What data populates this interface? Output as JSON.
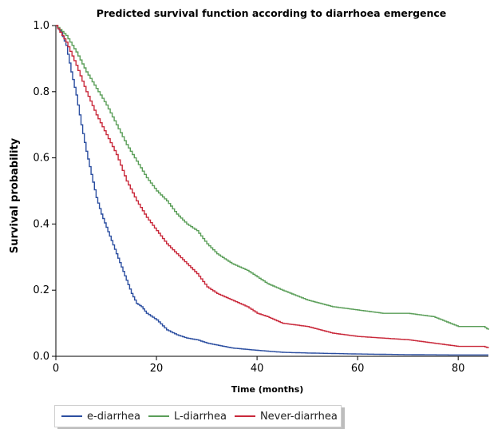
{
  "chart_data": {
    "type": "line",
    "title": "Predicted survival function according to diarrhoea emergence",
    "xlabel": "Time (months)",
    "ylabel": "Survival probability",
    "xlim": [
      0,
      86
    ],
    "ylim": [
      0,
      1.0
    ],
    "xticks": [
      0,
      20,
      40,
      60,
      80
    ],
    "xtick_labels": [
      "0",
      "20",
      "40",
      "60",
      "80"
    ],
    "yticks": [
      0,
      0.2,
      0.4,
      0.6,
      0.8,
      1.0
    ],
    "ytick_labels": [
      "0.0",
      "0.2",
      "0.4",
      "0.6",
      "0.8",
      "1.0"
    ],
    "grid": false,
    "legend_position": "bottom",
    "series": [
      {
        "name": "e-diarrhea",
        "color": "#2b4ea0",
        "x": [
          0,
          1,
          2,
          3,
          4,
          5,
          6,
          7,
          8,
          9,
          10,
          11,
          12,
          13,
          14,
          15,
          16,
          17,
          18,
          20,
          22,
          24,
          26,
          28,
          30,
          35,
          40,
          45,
          50,
          60,
          70,
          80,
          86
        ],
        "y": [
          1.0,
          0.98,
          0.94,
          0.86,
          0.79,
          0.7,
          0.62,
          0.55,
          0.48,
          0.43,
          0.39,
          0.35,
          0.31,
          0.27,
          0.23,
          0.19,
          0.16,
          0.15,
          0.13,
          0.11,
          0.08,
          0.065,
          0.055,
          0.05,
          0.04,
          0.025,
          0.018,
          0.012,
          0.01,
          0.007,
          0.005,
          0.004,
          0.004
        ]
      },
      {
        "name": "L-diarrhea",
        "color": "#5a9e58",
        "x": [
          0,
          2,
          4,
          6,
          8,
          10,
          12,
          14,
          16,
          18,
          20,
          22,
          24,
          26,
          28,
          30,
          32,
          35,
          38,
          40,
          42,
          45,
          50,
          55,
          60,
          65,
          70,
          75,
          80,
          85,
          86
        ],
        "y": [
          1.0,
          0.97,
          0.92,
          0.86,
          0.81,
          0.76,
          0.7,
          0.64,
          0.59,
          0.54,
          0.5,
          0.47,
          0.43,
          0.4,
          0.38,
          0.34,
          0.31,
          0.28,
          0.26,
          0.24,
          0.22,
          0.2,
          0.17,
          0.15,
          0.14,
          0.13,
          0.13,
          0.12,
          0.09,
          0.09,
          0.08
        ]
      },
      {
        "name": "Never-diarrhea",
        "color": "#c9283a",
        "x": [
          0,
          2,
          4,
          6,
          8,
          10,
          12,
          14,
          16,
          18,
          20,
          22,
          24,
          26,
          28,
          30,
          32,
          35,
          38,
          40,
          42,
          45,
          50,
          55,
          60,
          65,
          70,
          75,
          80,
          85,
          86
        ],
        "y": [
          1.0,
          0.95,
          0.88,
          0.8,
          0.73,
          0.67,
          0.61,
          0.53,
          0.47,
          0.42,
          0.38,
          0.34,
          0.31,
          0.28,
          0.25,
          0.21,
          0.19,
          0.17,
          0.15,
          0.13,
          0.12,
          0.1,
          0.09,
          0.07,
          0.06,
          0.055,
          0.05,
          0.04,
          0.03,
          0.03,
          0.025
        ]
      }
    ]
  }
}
